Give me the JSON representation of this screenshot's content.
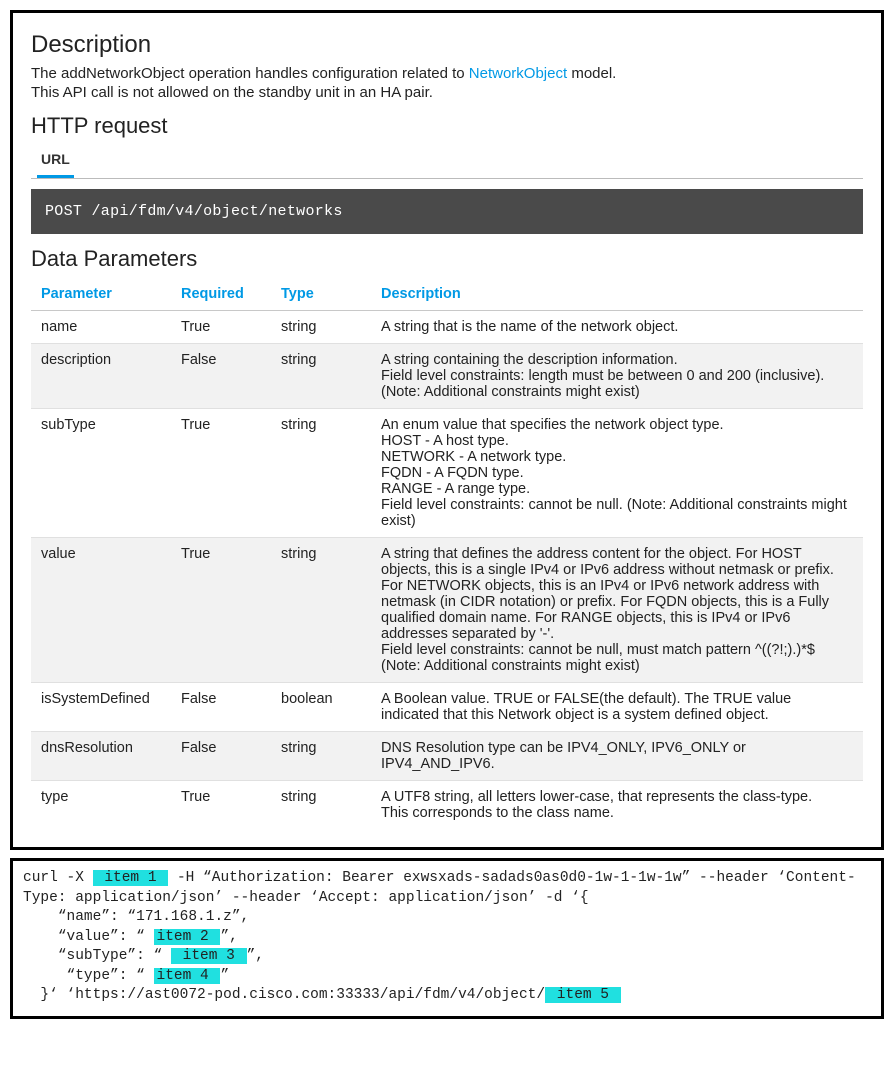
{
  "section_description_heading": "Description",
  "desc_line1_pre": "The addNetworkObject operation handles configuration related to ",
  "desc_line1_link": "NetworkObject",
  "desc_line1_post": " model.",
  "desc_line2": "This API call is not allowed on the standby unit in an HA pair.",
  "section_http_heading": "HTTP request",
  "tab_url": "URL",
  "http_code": "POST /api/fdm/v4/object/networks",
  "section_params_heading": "Data Parameters",
  "table": {
    "headers": [
      "Parameter",
      "Required",
      "Type",
      "Description"
    ],
    "rows": [
      {
        "param": "name",
        "required": "True",
        "type": "string",
        "desc": "A string that is the name of the network object."
      },
      {
        "param": "description",
        "required": "False",
        "type": "string",
        "desc": "A string containing the description information.\nField level constraints: length must be between 0 and 200 (inclusive). (Note: Additional constraints might exist)"
      },
      {
        "param": "subType",
        "required": "True",
        "type": "string",
        "desc": "An enum value that specifies the network object type.\nHOST - A host type.\nNETWORK - A network type.\nFQDN - A FQDN type.\nRANGE - A range type.\nField level constraints: cannot be null. (Note: Additional constraints might exist)"
      },
      {
        "param": "value",
        "required": "True",
        "type": "string",
        "desc": "A string that defines the address content for the object. For HOST objects, this is a single IPv4 or IPv6 address without netmask or prefix. For NETWORK objects, this is an IPv4 or IPv6 network address with netmask (in CIDR notation) or prefix. For FQDN objects, this is a Fully qualified domain name. For RANGE objects, this is IPv4 or IPv6 addresses separated by '-'.\nField level constraints: cannot be null, must match pattern ^((?!;).)*$ (Note: Additional constraints might exist)"
      },
      {
        "param": "isSystemDefined",
        "required": "False",
        "type": "boolean",
        "desc": "A Boolean value. TRUE or FALSE(the default). The TRUE value indicated that this Network object is a system defined object."
      },
      {
        "param": "dnsResolution",
        "required": "False",
        "type": "string",
        "desc": "DNS Resolution type can be IPV4_ONLY, IPV6_ONLY or IPV4_AND_IPV6."
      },
      {
        "param": "type",
        "required": "True",
        "type": "string",
        "desc": "A UTF8 string, all letters lower-case, that represents the class-type.\nThis corresponds to the class name."
      }
    ]
  },
  "curl": {
    "p1": "curl -X ",
    "i1": " item 1 ",
    "p2": " -H “Authorization: Bearer exwsxads-sadads0as0d0-1w-1-1w-1w” --header ‘Content-Type: application/json’ --header ‘Accept: application/json’ -d ‘{\n    “name”: “171.168.1.z”,\n    “value”: “ ",
    "i2": "item 2 ",
    "p3": "”,\n    “subType”: “ ",
    "i3": " item 3 ",
    "p4": "”,\n     “type”: “ ",
    "i4": "item 4 ",
    "p5": "”\n  }‘ ‘https://ast0072-pod.cisco.com:33333/api/fdm/v4/object/",
    "i5": " item 5 "
  },
  "colors": {
    "accent": "#0099e5",
    "codebg": "#4a4a4a",
    "highlight": "#20e0e0"
  }
}
